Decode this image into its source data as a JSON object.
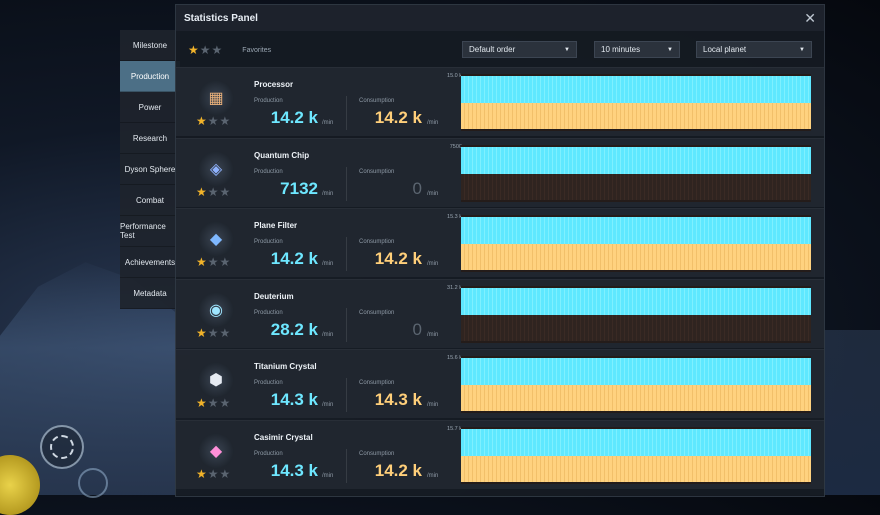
{
  "panel": {
    "title": "Statistics Panel"
  },
  "sidebar": {
    "items": [
      {
        "label": "Milestone"
      },
      {
        "label": "Production",
        "active": true
      },
      {
        "label": "Power"
      },
      {
        "label": "Research"
      },
      {
        "label": "Dyson Sphere"
      },
      {
        "label": "Combat"
      },
      {
        "label": "Performance Test"
      },
      {
        "label": "Achievements"
      },
      {
        "label": "Metadata"
      }
    ]
  },
  "filters": {
    "favorites_label": "Favorites",
    "order": "Default order",
    "time_range": "10 minutes",
    "scope": "Local planet"
  },
  "labels": {
    "production": "Production",
    "consumption": "Consumption",
    "unit": "/min"
  },
  "items": [
    {
      "name": "Processor",
      "production": "14.2 k",
      "consumption": "14.2 k",
      "scale": "15.0 k",
      "icon": "processor-icon"
    },
    {
      "name": "Quantum Chip",
      "production": "7132",
      "consumption": "0",
      "scale": "7500",
      "icon": "quantum-chip-icon"
    },
    {
      "name": "Plane Filter",
      "production": "14.2 k",
      "consumption": "14.2 k",
      "scale": "15.3 k",
      "icon": "plane-filter-icon"
    },
    {
      "name": "Deuterium",
      "production": "28.2 k",
      "consumption": "0",
      "scale": "31.2 k",
      "icon": "deuterium-icon"
    },
    {
      "name": "Titanium Crystal",
      "production": "14.3 k",
      "consumption": "14.3 k",
      "scale": "15.6 k",
      "icon": "titanium-crystal-icon"
    },
    {
      "name": "Casimir Crystal",
      "production": "14.3 k",
      "consumption": "14.2 k",
      "scale": "15.7 k",
      "icon": "casimir-crystal-icon"
    }
  ],
  "colors": {
    "production": "#6ee7ff",
    "consumption": "#ffcf7a",
    "active_tab": "#4c6f86",
    "star": "#f1b32a"
  }
}
